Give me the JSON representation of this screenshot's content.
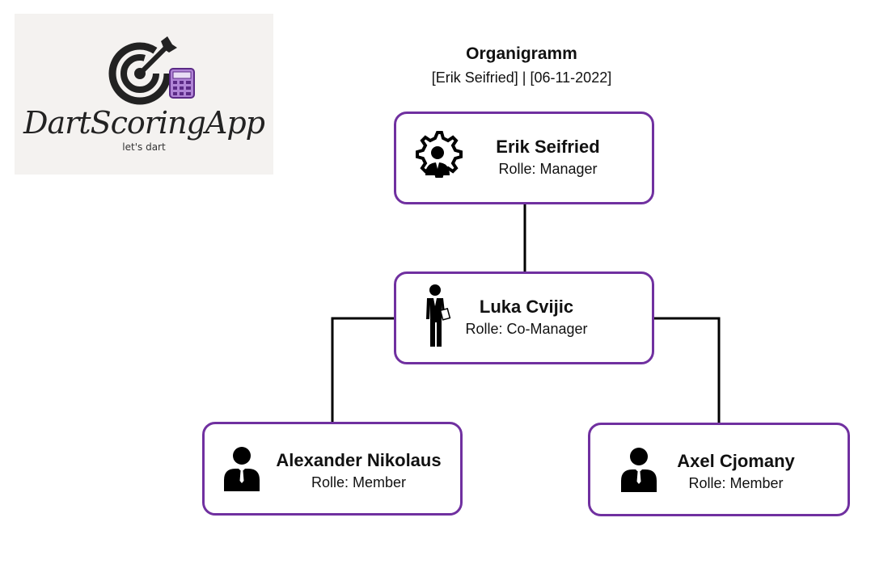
{
  "logo": {
    "wordmark": "DartScoringApp",
    "tagline": "let's dart"
  },
  "header": {
    "title": "Organigramm",
    "subtitle": "[Erik Seifried] | [06-11-2022]"
  },
  "nodes": {
    "manager": {
      "name": "Erik Seifried",
      "role": "Rolle: Manager",
      "icon": "manager-gear-person-icon"
    },
    "comanager": {
      "name": "Luka Cvijic",
      "role": "Rolle: Co-Manager",
      "icon": "businessman-standing-icon"
    },
    "member_left": {
      "name": "Alexander Nikolaus",
      "role": "Rolle: Member",
      "icon": "person-icon"
    },
    "member_right": {
      "name": "Axel Cjomany",
      "role": "Rolle: Member",
      "icon": "person-icon"
    }
  },
  "colors": {
    "node_border": "#7030a0",
    "connector": "#000000",
    "logo_background": "#f4f2f0"
  }
}
